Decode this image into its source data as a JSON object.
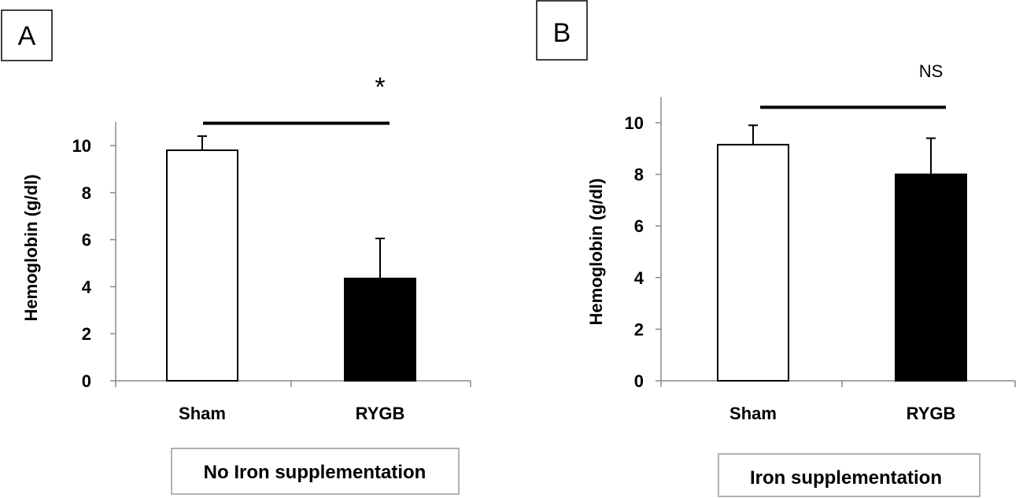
{
  "chart_data": [
    {
      "type": "bar",
      "panel_label": "A",
      "ylabel": "Hemoglobin (g/dl)",
      "xlabel": "",
      "categories": [
        "Sham",
        "RYGB"
      ],
      "values": [
        9.8,
        4.35
      ],
      "errors": [
        0.6,
        1.7
      ],
      "bar_colors": [
        "#ffffff",
        "#000000"
      ],
      "ylim": [
        0,
        11
      ],
      "yticks": [
        0,
        2,
        4,
        6,
        8,
        10
      ],
      "significance": {
        "label": "*",
        "level": 10.95
      },
      "condition": "No Iron supplementation"
    },
    {
      "type": "bar",
      "panel_label": "B",
      "ylabel": "Hemoglobin (g/dl)",
      "xlabel": "",
      "categories": [
        "Sham",
        "RYGB"
      ],
      "values": [
        9.15,
        8.0
      ],
      "errors": [
        0.75,
        1.4
      ],
      "bar_colors": [
        "#ffffff",
        "#000000"
      ],
      "ylim": [
        0,
        11
      ],
      "yticks": [
        0,
        2,
        4,
        6,
        8,
        10
      ],
      "significance": {
        "label": "NS",
        "level": 10.6
      },
      "condition": "Iron  supplementation"
    }
  ]
}
